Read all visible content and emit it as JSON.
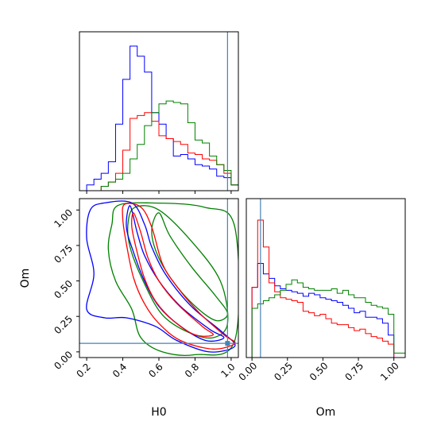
{
  "chart_data": {
    "type": "corner",
    "parameters": [
      {
        "name": "H0",
        "range": [
          0.16,
          1.04
        ],
        "ticks": [
          0.2,
          0.4,
          0.6,
          0.8,
          1.0
        ],
        "tick_labels": [
          "0.2",
          "0.4",
          "0.6",
          "0.8",
          "1.0"
        ]
      },
      {
        "name": "Om",
        "range": [
          -0.04,
          1.08
        ],
        "ticks": [
          0.0,
          0.25,
          0.5,
          0.75,
          1.0
        ],
        "tick_labels": [
          "0.00",
          "0.25",
          "0.50",
          "0.75",
          "1.00"
        ]
      }
    ],
    "truth": {
      "H0": 0.98,
      "Om": 0.06
    },
    "colors": {
      "blue": "#0000ff",
      "red": "#ff0000",
      "green": "#008000",
      "truth": "#4682b4"
    },
    "h0_hist_edges": [
      0.16,
      0.2,
      0.24,
      0.28,
      0.32,
      0.36,
      0.4,
      0.44,
      0.48,
      0.52,
      0.56,
      0.6,
      0.64,
      0.68,
      0.72,
      0.76,
      0.8,
      0.84,
      0.88,
      0.92,
      0.96,
      1.0,
      1.04
    ],
    "om_hist_edges": [
      -0.04,
      0.0,
      0.04,
      0.08,
      0.12,
      0.16,
      0.2,
      0.24,
      0.28,
      0.32,
      0.36,
      0.4,
      0.44,
      0.48,
      0.52,
      0.56,
      0.6,
      0.64,
      0.68,
      0.72,
      0.76,
      0.8,
      0.84,
      0.88,
      0.92,
      0.96,
      1.0,
      1.04,
      1.08
    ],
    "h0_hist": [
      {
        "color": "blue",
        "values": [
          0.0,
          0.04,
          0.08,
          0.12,
          0.2,
          0.46,
          0.77,
          1.0,
          0.93,
          0.82,
          0.54,
          0.46,
          0.36,
          0.24,
          0.25,
          0.22,
          0.18,
          0.17,
          0.15,
          0.1,
          0.09,
          0.04
        ]
      },
      {
        "color": "red",
        "values": [
          0.0,
          0.0,
          0.0,
          0.03,
          0.06,
          0.12,
          0.28,
          0.5,
          0.52,
          0.54,
          0.48,
          0.38,
          0.36,
          0.34,
          0.32,
          0.26,
          0.25,
          0.22,
          0.21,
          0.18,
          0.12,
          0.04
        ]
      },
      {
        "color": "green",
        "values": [
          0.0,
          0.0,
          0.0,
          0.03,
          0.06,
          0.08,
          0.12,
          0.22,
          0.32,
          0.45,
          0.54,
          0.6,
          0.62,
          0.61,
          0.6,
          0.47,
          0.35,
          0.33,
          0.24,
          0.18,
          0.14,
          0.04
        ]
      }
    ],
    "om_hist": [
      {
        "color": "blue",
        "values": [
          0.0,
          0.47,
          0.63,
          0.56,
          0.53,
          0.48,
          0.46,
          0.45,
          0.44,
          0.43,
          0.41,
          0.43,
          0.42,
          0.4,
          0.39,
          0.38,
          0.37,
          0.35,
          0.33,
          0.3,
          0.31,
          0.27,
          0.27,
          0.26,
          0.23,
          0.15,
          0.0,
          0.0
        ]
      },
      {
        "color": "red",
        "values": [
          0.0,
          0.47,
          0.92,
          0.74,
          0.5,
          0.44,
          0.4,
          0.39,
          0.38,
          0.37,
          0.31,
          0.3,
          0.28,
          0.29,
          0.26,
          0.23,
          0.22,
          0.22,
          0.2,
          0.18,
          0.19,
          0.16,
          0.14,
          0.13,
          0.11,
          0.09,
          0.0,
          0.0
        ]
      },
      {
        "color": "green",
        "values": [
          0.0,
          0.33,
          0.36,
          0.38,
          0.4,
          0.42,
          0.45,
          0.49,
          0.52,
          0.5,
          0.47,
          0.46,
          0.45,
          0.45,
          0.45,
          0.46,
          0.43,
          0.45,
          0.42,
          0.4,
          0.4,
          0.37,
          0.35,
          0.34,
          0.33,
          0.29,
          0.03,
          0.03
        ]
      }
    ],
    "contours_2d": [
      {
        "color": "green",
        "level": "outer",
        "points": [
          [
            0.37,
            1.03
          ],
          [
            0.55,
            1.05
          ],
          [
            0.85,
            1.02
          ],
          [
            1.02,
            0.88
          ],
          [
            1.02,
            0.08
          ],
          [
            0.8,
            -0.02
          ],
          [
            0.62,
            0.0
          ],
          [
            0.5,
            0.1
          ],
          [
            0.45,
            0.3
          ],
          [
            0.36,
            0.5
          ],
          [
            0.32,
            0.72
          ],
          [
            0.34,
            0.9
          ]
        ]
      },
      {
        "color": "green",
        "level": "middle",
        "points": [
          [
            0.47,
            1.02
          ],
          [
            0.6,
            1.0
          ],
          [
            0.78,
            0.78
          ],
          [
            0.94,
            0.5
          ],
          [
            0.98,
            0.2
          ],
          [
            0.9,
            0.1
          ],
          [
            0.76,
            0.14
          ],
          [
            0.62,
            0.26
          ],
          [
            0.52,
            0.48
          ],
          [
            0.44,
            0.74
          ],
          [
            0.43,
            0.92
          ]
        ]
      },
      {
        "color": "green",
        "level": "inner",
        "points": [
          [
            0.6,
            0.98
          ],
          [
            0.66,
            0.82
          ],
          [
            0.78,
            0.6
          ],
          [
            0.91,
            0.4
          ],
          [
            0.98,
            0.27
          ],
          [
            0.92,
            0.22
          ],
          [
            0.82,
            0.3
          ],
          [
            0.7,
            0.46
          ],
          [
            0.6,
            0.66
          ],
          [
            0.56,
            0.85
          ]
        ]
      },
      {
        "color": "blue",
        "level": "outer",
        "points": [
          [
            0.22,
            1.0
          ],
          [
            0.3,
            1.05
          ],
          [
            0.45,
            1.05
          ],
          [
            0.52,
            0.9
          ],
          [
            0.56,
            0.74
          ],
          [
            0.64,
            0.54
          ],
          [
            0.78,
            0.32
          ],
          [
            0.95,
            0.14
          ],
          [
            1.02,
            0.04
          ],
          [
            0.88,
            0.0
          ],
          [
            0.7,
            0.08
          ],
          [
            0.58,
            0.18
          ],
          [
            0.42,
            0.24
          ],
          [
            0.3,
            0.24
          ],
          [
            0.2,
            0.3
          ],
          [
            0.24,
            0.55
          ],
          [
            0.2,
            0.8
          ]
        ]
      },
      {
        "color": "blue",
        "level": "inner",
        "points": [
          [
            0.44,
            1.03
          ],
          [
            0.48,
            0.84
          ],
          [
            0.52,
            0.68
          ],
          [
            0.6,
            0.5
          ],
          [
            0.72,
            0.32
          ],
          [
            0.88,
            0.16
          ],
          [
            0.96,
            0.1
          ],
          [
            0.86,
            0.08
          ],
          [
            0.72,
            0.18
          ],
          [
            0.6,
            0.32
          ],
          [
            0.52,
            0.5
          ],
          [
            0.46,
            0.7
          ],
          [
            0.42,
            0.88
          ]
        ]
      },
      {
        "color": "red",
        "level": "outer",
        "points": [
          [
            0.41,
            1.04
          ],
          [
            0.5,
            1.02
          ],
          [
            0.56,
            0.88
          ],
          [
            0.62,
            0.62
          ],
          [
            0.7,
            0.46
          ],
          [
            0.82,
            0.28
          ],
          [
            0.96,
            0.12
          ],
          [
            1.02,
            0.06
          ],
          [
            0.9,
            0.02
          ],
          [
            0.72,
            0.08
          ],
          [
            0.6,
            0.2
          ],
          [
            0.52,
            0.34
          ],
          [
            0.46,
            0.52
          ],
          [
            0.42,
            0.76
          ],
          [
            0.4,
            0.94
          ]
        ]
      },
      {
        "color": "red",
        "level": "inner",
        "points": [
          [
            0.46,
            0.98
          ],
          [
            0.5,
            0.84
          ],
          [
            0.54,
            0.66
          ],
          [
            0.6,
            0.5
          ],
          [
            0.7,
            0.34
          ],
          [
            0.84,
            0.18
          ],
          [
            0.9,
            0.12
          ],
          [
            0.8,
            0.12
          ],
          [
            0.68,
            0.22
          ],
          [
            0.58,
            0.36
          ],
          [
            0.52,
            0.52
          ],
          [
            0.48,
            0.7
          ],
          [
            0.45,
            0.88
          ]
        ]
      }
    ]
  }
}
